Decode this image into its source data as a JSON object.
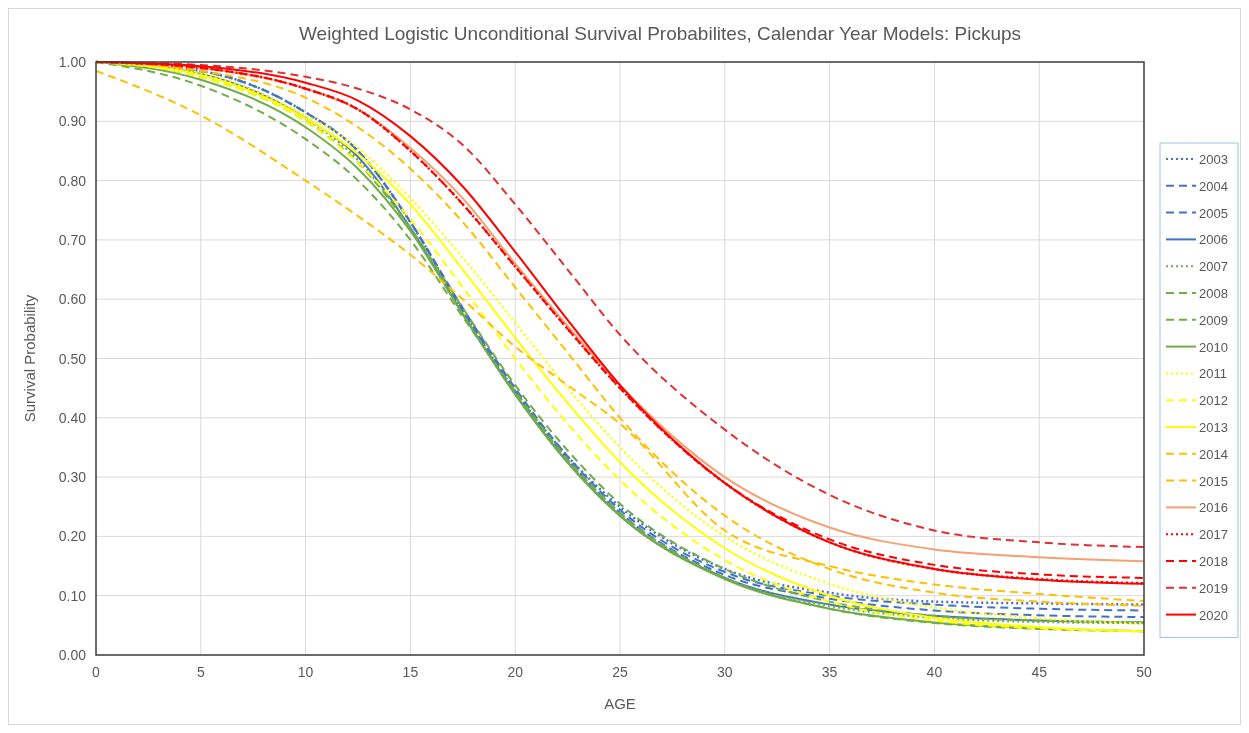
{
  "chart_data": {
    "type": "line",
    "title": "Weighted Logistic Unconditional Survival Probabilites, Calendar Year Models: Pickups",
    "xlabel": "AGE",
    "ylabel": "Survival Probability",
    "x": [
      0,
      5,
      10,
      12.5,
      15,
      17.5,
      20,
      22.5,
      25,
      30,
      35,
      40,
      45,
      50
    ],
    "xlim": [
      0,
      50
    ],
    "xticks": [
      0,
      5,
      10,
      15,
      20,
      25,
      30,
      35,
      40,
      45,
      50
    ],
    "ylim": [
      0,
      1
    ],
    "yticks": [
      {
        "value": 0,
        "label": "0.00"
      },
      {
        "value": 0.1,
        "label": "0.10"
      },
      {
        "value": 0.2,
        "label": "0.20"
      },
      {
        "value": 0.3,
        "label": "0.30"
      },
      {
        "value": 0.4,
        "label": "0.40"
      },
      {
        "value": 0.5,
        "label": "0.50"
      },
      {
        "value": 0.6,
        "label": "0.60"
      },
      {
        "value": 0.7,
        "label": "0.70"
      },
      {
        "value": 0.8,
        "label": "0.80"
      },
      {
        "value": 0.9,
        "label": "0.90"
      },
      {
        "value": 1,
        "label": "1.00"
      }
    ],
    "grid": true,
    "legend": "right",
    "series": [
      {
        "name": "2003",
        "color": "#4472c4",
        "line_style": "dotted",
        "values": [
          1.0,
          0.985,
          0.915,
          0.85,
          0.73,
          0.58,
          0.445,
          0.335,
          0.25,
          0.145,
          0.105,
          0.09,
          0.087,
          0.085
        ]
      },
      {
        "name": "2004",
        "color": "#4472c4",
        "line_style": "dashed",
        "values": [
          1.0,
          0.985,
          0.915,
          0.85,
          0.73,
          0.585,
          0.45,
          0.335,
          0.245,
          0.14,
          0.1,
          0.085,
          0.078,
          0.075
        ]
      },
      {
        "name": "2005",
        "color": "#4472c4",
        "line_style": "dashed",
        "values": [
          1.0,
          0.985,
          0.915,
          0.85,
          0.73,
          0.58,
          0.445,
          0.33,
          0.24,
          0.135,
          0.095,
          0.075,
          0.067,
          0.064
        ]
      },
      {
        "name": "2006",
        "color": "#4472c4",
        "line_style": "solid",
        "values": [
          1.0,
          0.98,
          0.905,
          0.84,
          0.72,
          0.575,
          0.44,
          0.325,
          0.235,
          0.13,
          0.085,
          0.066,
          0.058,
          0.055
        ]
      },
      {
        "name": "2007",
        "color": "#70ad47",
        "line_style": "dotted",
        "values": [
          1.0,
          0.98,
          0.905,
          0.835,
          0.72,
          0.575,
          0.44,
          0.325,
          0.235,
          0.13,
          0.083,
          0.063,
          0.056,
          0.054
        ]
      },
      {
        "name": "2008",
        "color": "#70ad47",
        "line_style": "dashed",
        "values": [
          1.0,
          0.975,
          0.9,
          0.83,
          0.72,
          0.585,
          0.455,
          0.345,
          0.255,
          0.145,
          0.09,
          0.066,
          0.058,
          0.055
        ]
      },
      {
        "name": "2009",
        "color": "#70ad47",
        "line_style": "dashed",
        "values": [
          1.0,
          0.96,
          0.87,
          0.8,
          0.7,
          0.57,
          0.445,
          0.33,
          0.24,
          0.13,
          0.078,
          0.054,
          0.044,
          0.04
        ]
      },
      {
        "name": "2010",
        "color": "#70ad47",
        "line_style": "solid",
        "values": [
          1.0,
          0.97,
          0.89,
          0.82,
          0.715,
          0.575,
          0.44,
          0.325,
          0.235,
          0.128,
          0.078,
          0.055,
          0.045,
          0.04
        ]
      },
      {
        "name": "2011",
        "color": "#ffff00",
        "line_style": "dotted",
        "values": [
          1.0,
          0.98,
          0.91,
          0.855,
          0.77,
          0.67,
          0.56,
          0.45,
          0.35,
          0.2,
          0.12,
          0.08,
          0.062,
          0.053
        ]
      },
      {
        "name": "2012",
        "color": "#ffff00",
        "line_style": "dashed",
        "values": [
          1.0,
          0.975,
          0.9,
          0.83,
          0.735,
          0.62,
          0.5,
          0.39,
          0.295,
          0.16,
          0.09,
          0.058,
          0.045,
          0.04
        ]
      },
      {
        "name": "2013",
        "color": "#ffff00",
        "line_style": "solid",
        "values": [
          1.0,
          0.978,
          0.905,
          0.845,
          0.76,
          0.65,
          0.535,
          0.425,
          0.325,
          0.18,
          0.1,
          0.063,
          0.047,
          0.04
        ]
      },
      {
        "name": "2014",
        "color": "#ffc000",
        "line_style": "dashed",
        "values": [
          1.0,
          0.985,
          0.94,
          0.89,
          0.82,
          0.73,
          0.62,
          0.51,
          0.4,
          0.235,
          0.145,
          0.105,
          0.09,
          0.083
        ]
      },
      {
        "name": "2015",
        "color": "#ffc000",
        "line_style": "dashed",
        "values": [
          0.985,
          0.91,
          0.8,
          0.74,
          0.675,
          0.6,
          0.52,
          0.455,
          0.39,
          0.21,
          0.15,
          0.119,
          0.103,
          0.091
        ]
      },
      {
        "name": "2016",
        "color": "#f4a070",
        "line_style": "solid",
        "values": [
          1.0,
          0.99,
          0.955,
          0.92,
          0.855,
          0.77,
          0.66,
          0.555,
          0.455,
          0.3,
          0.215,
          0.178,
          0.165,
          0.158
        ]
      },
      {
        "name": "2017",
        "color": "#ff0000",
        "line_style": "dotted",
        "values": [
          1.0,
          0.99,
          0.955,
          0.92,
          0.85,
          0.76,
          0.655,
          0.55,
          0.45,
          0.29,
          0.19,
          0.145,
          0.128,
          0.121
        ]
      },
      {
        "name": "2018",
        "color": "#ff0000",
        "line_style": "dashed",
        "values": [
          1.0,
          0.99,
          0.955,
          0.92,
          0.85,
          0.76,
          0.655,
          0.55,
          0.45,
          0.29,
          0.195,
          0.152,
          0.136,
          0.13
        ]
      },
      {
        "name": "2019",
        "color": "#e03030",
        "line_style": "dashed",
        "values": [
          1.0,
          0.995,
          0.975,
          0.955,
          0.92,
          0.86,
          0.76,
          0.65,
          0.54,
          0.38,
          0.27,
          0.21,
          0.19,
          0.182
        ]
      },
      {
        "name": "2020",
        "color": "#ff0000",
        "line_style": "solid",
        "values": [
          1.0,
          0.993,
          0.965,
          0.935,
          0.875,
          0.79,
          0.68,
          0.565,
          0.455,
          0.29,
          0.19,
          0.145,
          0.127,
          0.12
        ]
      }
    ]
  }
}
